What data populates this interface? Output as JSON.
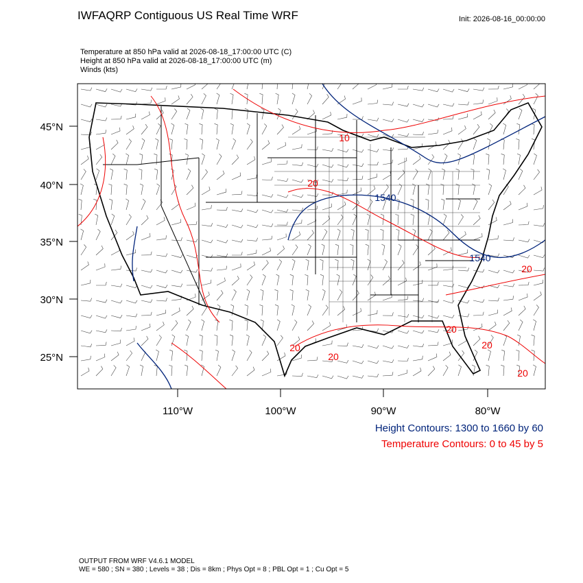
{
  "header": {
    "title": "IWFAQRP Contiguous US Real Time WRF",
    "init": "Init: 2026-08-16_00:00:00",
    "fields": [
      "Temperature at 850 hPa valid at 2026-08-18_17:00:00 UTC   (C)",
      "Height at 850 hPa valid at 2026-08-18_17:00:00 UTC   (m)",
      "Winds   (kts)"
    ]
  },
  "map": {
    "lat_labels": [
      "45°N",
      "40°N",
      "35°N",
      "30°N",
      "25°N"
    ],
    "lon_labels": [
      "110°W",
      "100°W",
      "90°W",
      "80°W"
    ],
    "contour_labels": [
      "10",
      "20",
      "1540",
      "1540",
      "20",
      "20",
      "20",
      "20",
      "20",
      "20"
    ]
  },
  "legend": {
    "height": "Height Contours: 1300 to 1660 by 60",
    "temperature": "Temperature Contours: 0 to 45 by 5"
  },
  "footer": [
    "OUTPUT FROM WRF V4.6.1 MODEL",
    "WE = 580 ; SN = 380 ; Levels = 38 ; Dis = 8km ; Phys Opt = 8 ; PBL Opt = 1 ; Cu Opt = 5"
  ]
}
